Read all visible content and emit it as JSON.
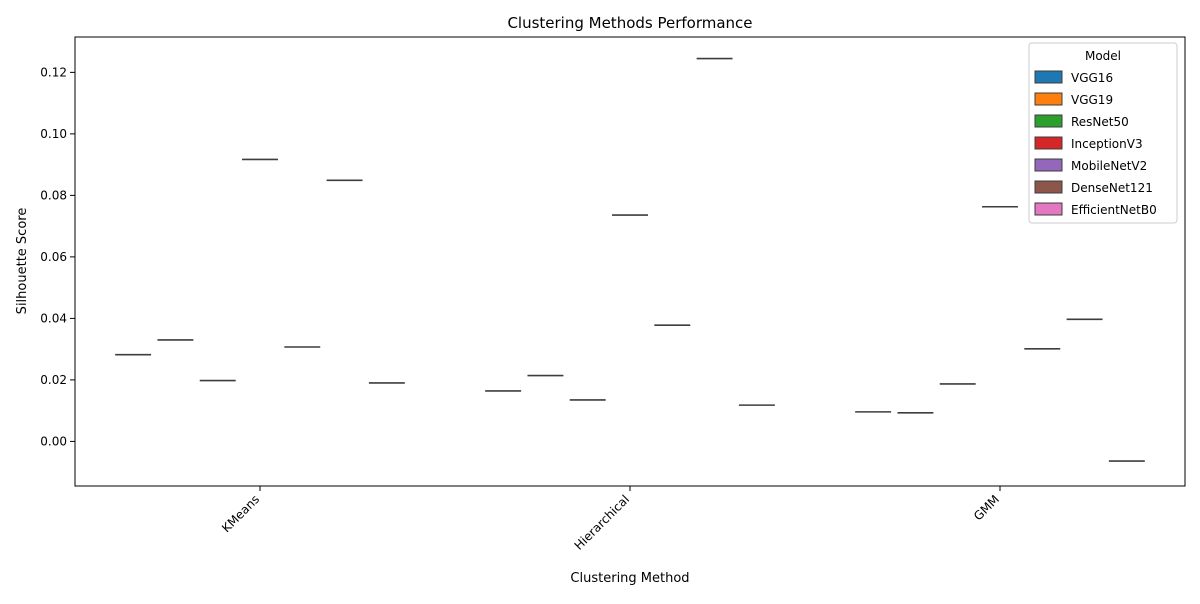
{
  "chart_data": {
    "type": "box",
    "title": "Clustering Methods Performance",
    "xlabel": "Clustering Method",
    "ylabel": "Silhouette Score",
    "categories": [
      "KMeans",
      "Hierarchical",
      "GMM"
    ],
    "ylim": [
      -0.0145,
      0.1315
    ],
    "yticks": [
      0.0,
      0.02,
      0.04,
      0.06,
      0.08,
      0.1,
      0.12
    ],
    "ytick_labels": [
      "0.00",
      "0.02",
      "0.04",
      "0.06",
      "0.08",
      "0.10",
      "0.12"
    ],
    "xtick_rotation": 45,
    "legend": {
      "title": "Model",
      "position": "top-right"
    },
    "series": [
      {
        "name": "VGG16",
        "color": "#1f77b4",
        "values": [
          0.0282,
          0.0164,
          0.0096
        ]
      },
      {
        "name": "VGG19",
        "color": "#ff7f0e",
        "values": [
          0.033,
          0.0214,
          0.0093
        ]
      },
      {
        "name": "ResNet50",
        "color": "#2ca02c",
        "values": [
          0.0198,
          0.0135,
          0.0187
        ]
      },
      {
        "name": "InceptionV3",
        "color": "#d62728",
        "values": [
          0.0917,
          0.0736,
          0.0763
        ]
      },
      {
        "name": "MobileNetV2",
        "color": "#9467bd",
        "values": [
          0.0307,
          0.0378,
          0.0301
        ]
      },
      {
        "name": "DenseNet121",
        "color": "#8c564b",
        "values": [
          0.0849,
          0.1245,
          0.0397
        ]
      },
      {
        "name": "EfficientNetB0",
        "color": "#e377c2",
        "values": [
          0.019,
          0.0118,
          -0.0064
        ]
      }
    ]
  }
}
